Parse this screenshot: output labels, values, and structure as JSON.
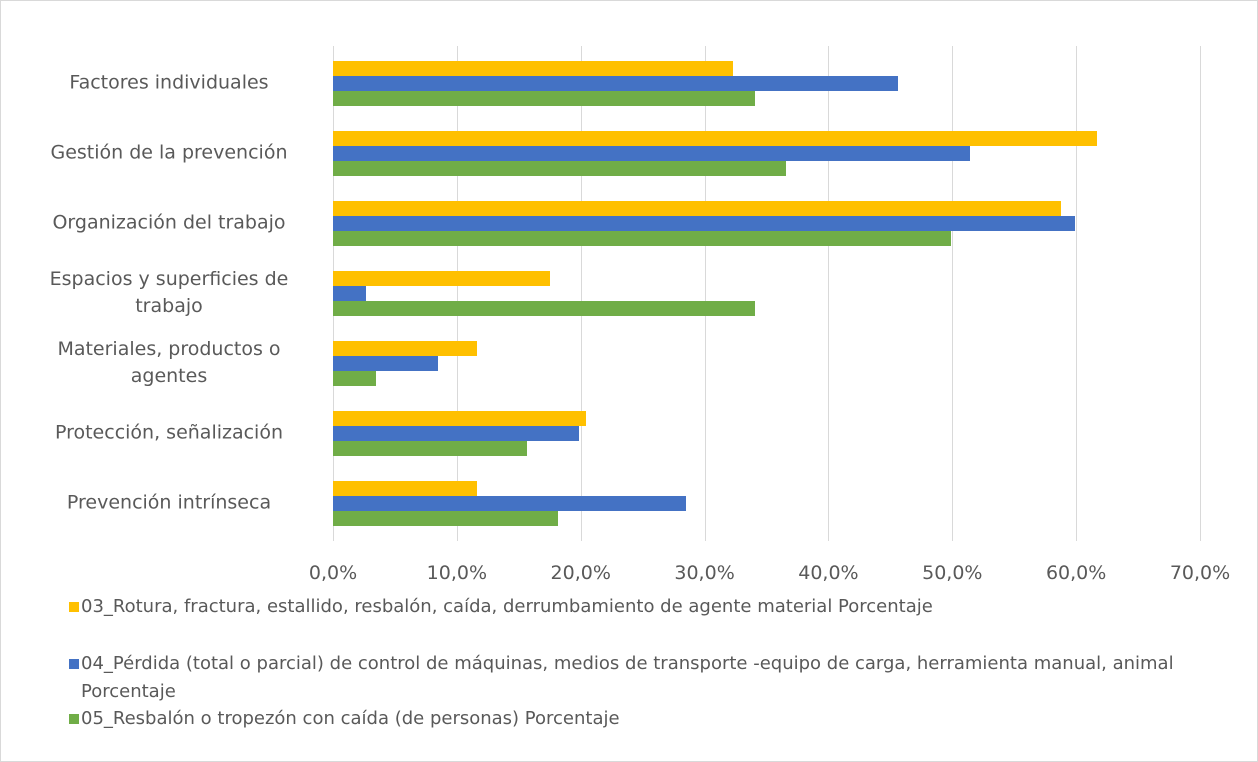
{
  "chart_data": {
    "type": "bar",
    "orientation": "horizontal",
    "categories": [
      "Factores individuales",
      "Gestión de la prevención",
      "Organización del trabajo",
      "Espacios y superficies de trabajo",
      "Materiales, productos o agentes",
      "Protección, señalización",
      "Prevención intrínseca"
    ],
    "series": [
      {
        "name": "03_Rotura, fractura, estallido, resbalón, caída, derrumbamiento de agente material Porcentaje",
        "color": "#ffc000",
        "values": [
          32.3,
          61.7,
          58.8,
          17.5,
          11.6,
          20.4,
          11.6
        ]
      },
      {
        "name": "04_Pérdida (total o parcial) de control de máquinas, medios de transporte -equipo de carga, herramienta manual, animal Porcentaje",
        "color": "#4472c4",
        "values": [
          45.6,
          51.4,
          59.9,
          2.7,
          8.5,
          19.9,
          28.5
        ]
      },
      {
        "name": "05_Resbalón o tropezón con caída (de personas) Porcentaje",
        "color": "#70ad47",
        "values": [
          34.1,
          36.6,
          49.9,
          34.1,
          3.5,
          15.7,
          18.2
        ]
      }
    ],
    "xlim": [
      0,
      70
    ],
    "xticks": [
      {
        "value": 0,
        "label": "0,0%"
      },
      {
        "value": 10,
        "label": "10,0%"
      },
      {
        "value": 20,
        "label": "20,0%"
      },
      {
        "value": 30,
        "label": "30,0%"
      },
      {
        "value": 40,
        "label": "40,0%"
      },
      {
        "value": 50,
        "label": "50,0%"
      },
      {
        "value": 60,
        "label": "60,0%"
      },
      {
        "value": 70,
        "label": "70,0%"
      }
    ],
    "grid": true,
    "legend": "bottom"
  }
}
